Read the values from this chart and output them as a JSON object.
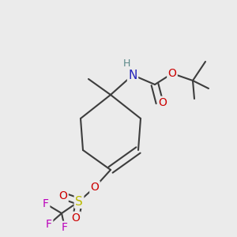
{
  "bg_color": "#EBEBEB",
  "bond_color": "#3d3d3d",
  "bond_width": 1.5,
  "atom_colors": {
    "N": "#2222BB",
    "O": "#CC0000",
    "S": "#BBBB00",
    "F": "#BB00BB",
    "H": "#5a8888",
    "C": "#3d3d3d"
  },
  "figsize": [
    3.0,
    3.0
  ],
  "dpi": 100
}
